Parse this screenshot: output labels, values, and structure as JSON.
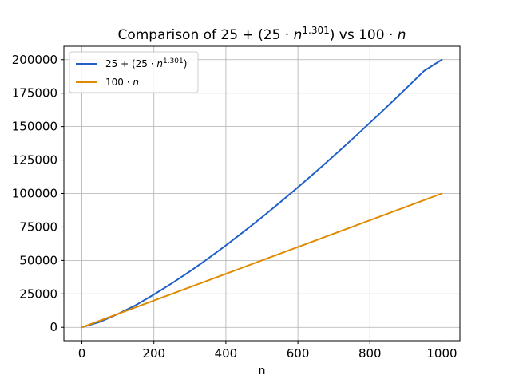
{
  "chart_data": {
    "type": "line",
    "title": {
      "prefix": "Comparison of 25 + (25 · ",
      "var": "n",
      "exp": "1.301",
      "mid": ") vs 100 · ",
      "var2": "n"
    },
    "xlabel": "n",
    "ylabel": "",
    "xlim": [
      -50,
      1050
    ],
    "ylim": [
      -10000,
      210000
    ],
    "xticks": [
      0,
      200,
      400,
      600,
      800,
      1000
    ],
    "yticks": [
      0,
      25000,
      50000,
      75000,
      100000,
      125000,
      150000,
      175000,
      200000
    ],
    "grid": true,
    "legend_position": "top-left",
    "x": [
      0,
      50,
      100,
      150,
      200,
      250,
      300,
      350,
      400,
      450,
      500,
      550,
      600,
      650,
      700,
      750,
      800,
      850,
      900,
      950,
      1000
    ],
    "series": [
      {
        "name": {
          "prefix": "25 + (25 · ",
          "var": "n",
          "exp": "1.301",
          "suffix": ")"
        },
        "color": "#1f5fc8",
        "values": [
          25,
          4075,
          9953,
          16583,
          24500,
          32900,
          41800,
          51300,
          61200,
          71550,
          82200,
          93250,
          104600,
          116250,
          128150,
          140350,
          152800,
          165500,
          178400,
          191500,
          200000
        ]
      },
      {
        "name": {
          "prefix": "100 · ",
          "var": "n",
          "suffix": ""
        },
        "color": "#e08a00",
        "values": [
          0,
          5000,
          10000,
          15000,
          20000,
          25000,
          30000,
          35000,
          40000,
          45000,
          50000,
          55000,
          60000,
          65000,
          70000,
          75000,
          80000,
          85000,
          90000,
          95000,
          100000
        ]
      }
    ]
  }
}
